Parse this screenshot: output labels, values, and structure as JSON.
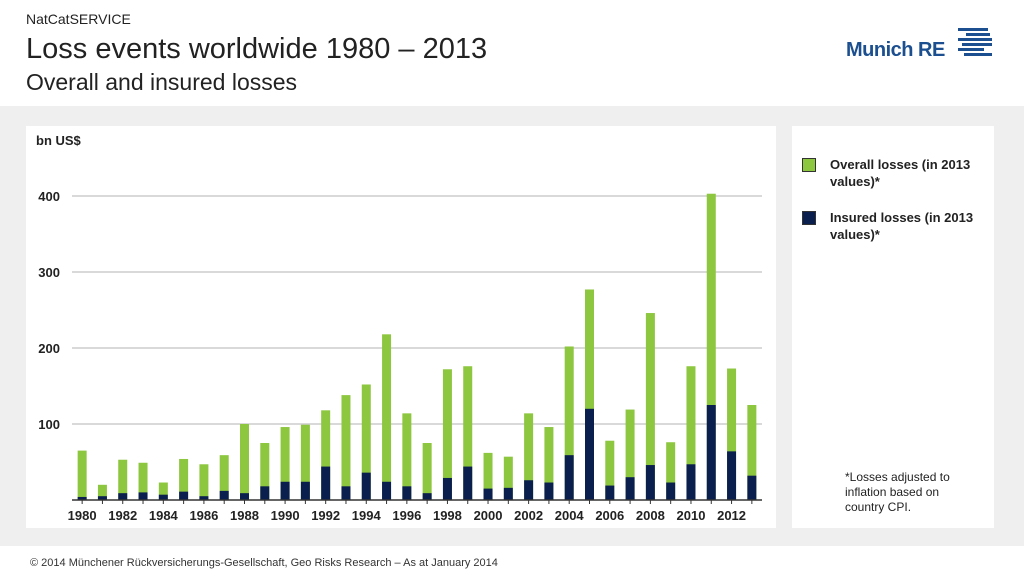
{
  "header": {
    "kicker": "NatCatSERVICE",
    "title": "Loss events worldwide 1980 – 2013",
    "subtitle": "Overall and insured losses",
    "logo_text": "Munich RE"
  },
  "colors": {
    "overall": "#8dc63f",
    "insured": "#0b1f4f",
    "grid": "#b3b3b3",
    "logo": "#1b4f8f"
  },
  "legend": {
    "overall_label": "Overall losses (in 2013 values)*",
    "insured_label": "Insured losses (in 2013 values)*"
  },
  "footnote": "*Losses adjusted to inflation based on country CPI.",
  "footer": "© 2014 Münchener Rückversicherungs-Gesellschaft, Geo Risks Research – As at January 2014",
  "chart_data": {
    "type": "bar",
    "ylabel": "bn US$",
    "ylim": [
      0,
      430
    ],
    "yticks": [
      100,
      200,
      300,
      400
    ],
    "grid": true,
    "legend_position": "right",
    "x": [
      1980,
      1981,
      1982,
      1983,
      1984,
      1985,
      1986,
      1987,
      1988,
      1989,
      1990,
      1991,
      1992,
      1993,
      1994,
      1995,
      1996,
      1997,
      1998,
      1999,
      2000,
      2001,
      2002,
      2003,
      2004,
      2005,
      2006,
      2007,
      2008,
      2009,
      2010,
      2011,
      2012,
      2013
    ],
    "x_tick_labels": [
      "1980",
      "1982",
      "1984",
      "1986",
      "1988",
      "1990",
      "1992",
      "1994",
      "1996",
      "1998",
      "2000",
      "2002",
      "2004",
      "2006",
      "2008",
      "2010",
      "2012"
    ],
    "series": [
      {
        "name": "Overall losses (in 2013 values)*",
        "values": [
          65,
          20,
          53,
          49,
          23,
          54,
          47,
          59,
          100,
          75,
          96,
          99,
          118,
          138,
          152,
          218,
          114,
          75,
          172,
          176,
          62,
          57,
          114,
          96,
          202,
          277,
          78,
          119,
          246,
          76,
          176,
          403,
          173,
          125
        ]
      },
      {
        "name": "Insured losses (in 2013 values)*",
        "values": [
          4,
          5,
          9,
          10,
          7,
          11,
          5,
          12,
          9,
          18,
          24,
          24,
          44,
          18,
          36,
          24,
          18,
          9,
          29,
          44,
          15,
          16,
          26,
          23,
          59,
          120,
          19,
          30,
          46,
          23,
          47,
          125,
          64,
          32
        ]
      }
    ]
  }
}
